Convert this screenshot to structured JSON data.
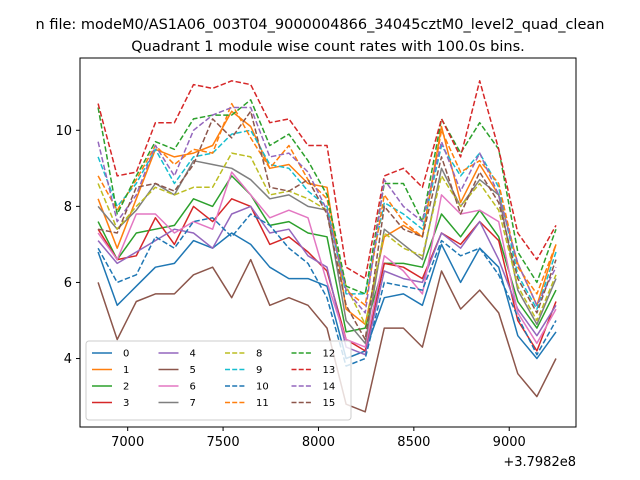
{
  "chart_data": {
    "type": "line",
    "suptitle": "n file: modeM0/AS1A06_003T04_9000004866_34045cztM0_level2_quad_clean",
    "title": "Quadrant 1 module wise count rates with 100.0s bins.",
    "xlabel": "",
    "ylabel": "",
    "x_offset_label": "+3.7982e8",
    "xlim": [
      6750,
      9350
    ],
    "ylim": [
      2.2,
      11.9
    ],
    "x_ticks": [
      7000,
      7500,
      8000,
      8500,
      9000
    ],
    "x_tick_labels": [
      "7000",
      "7500",
      "8000",
      "8500",
      "9000"
    ],
    "y_ticks": [
      4,
      6,
      8,
      10
    ],
    "y_tick_labels": [
      "4",
      "6",
      "8",
      "10"
    ],
    "grid": false,
    "legend_position": "lower-left",
    "x": [
      6845,
      6945,
      7045,
      7145,
      7245,
      7345,
      7445,
      7545,
      7645,
      7745,
      7845,
      7945,
      8045,
      8145,
      8245,
      8345,
      8445,
      8545,
      8645,
      8745,
      8845,
      8945,
      9045,
      9145,
      9245
    ],
    "series": [
      {
        "name": "0",
        "color": "#1f77b4",
        "dash": "solid",
        "values": [
          6.8,
          5.4,
          5.9,
          6.4,
          6.5,
          7.1,
          6.9,
          7.3,
          7.0,
          6.4,
          6.1,
          6.1,
          5.9,
          4.0,
          4.2,
          5.6,
          5.7,
          5.4,
          7.0,
          6.0,
          6.9,
          6.4,
          4.6,
          4.0,
          4.7
        ]
      },
      {
        "name": "1",
        "color": "#ff7f0e",
        "dash": "solid",
        "values": [
          8.2,
          6.9,
          8.2,
          9.5,
          9.3,
          9.4,
          9.6,
          10.5,
          10.1,
          9.0,
          9.1,
          8.6,
          8.5,
          5.3,
          4.9,
          7.2,
          7.5,
          7.2,
          10.1,
          8.1,
          9.1,
          8.3,
          6.5,
          5.4,
          7.0
        ]
      },
      {
        "name": "2",
        "color": "#2ca02c",
        "dash": "solid",
        "values": [
          7.6,
          6.6,
          7.3,
          7.4,
          7.5,
          8.2,
          8.0,
          8.8,
          8.3,
          7.5,
          7.6,
          7.3,
          7.2,
          4.7,
          4.8,
          6.5,
          6.5,
          6.4,
          7.8,
          7.2,
          7.9,
          7.2,
          5.5,
          4.8,
          5.8
        ]
      },
      {
        "name": "3",
        "color": "#d62728",
        "dash": "solid",
        "values": [
          7.4,
          6.6,
          6.7,
          7.7,
          7.0,
          8.0,
          7.6,
          8.2,
          8.0,
          7.0,
          7.2,
          6.8,
          6.3,
          4.5,
          4.2,
          6.5,
          6.4,
          6.1,
          7.3,
          7.0,
          7.6,
          7.1,
          5.0,
          4.2,
          5.5
        ]
      },
      {
        "name": "4",
        "color": "#9467bd",
        "dash": "solid",
        "values": [
          7.1,
          6.5,
          6.8,
          7.1,
          7.4,
          7.3,
          6.9,
          7.8,
          8.0,
          7.3,
          7.4,
          6.7,
          6.4,
          4.3,
          4.1,
          6.3,
          6.1,
          6.0,
          7.3,
          6.9,
          7.6,
          6.6,
          5.3,
          4.6,
          5.4
        ]
      },
      {
        "name": "5",
        "color": "#8c564b",
        "dash": "solid",
        "values": [
          6.0,
          4.5,
          5.5,
          5.7,
          5.7,
          6.2,
          6.4,
          5.6,
          6.6,
          5.4,
          5.6,
          5.4,
          4.8,
          2.8,
          2.6,
          4.8,
          4.8,
          4.3,
          6.3,
          5.3,
          5.8,
          5.2,
          3.6,
          3.0,
          4.0
        ]
      },
      {
        "name": "6",
        "color": "#e377c2",
        "dash": "solid",
        "values": [
          7.3,
          6.6,
          7.8,
          7.8,
          7.3,
          7.6,
          7.4,
          8.9,
          8.3,
          7.7,
          7.9,
          7.7,
          6.0,
          4.5,
          4.3,
          6.7,
          6.3,
          5.7,
          8.3,
          7.8,
          7.9,
          7.6,
          5.2,
          4.4,
          5.3
        ]
      },
      {
        "name": "7",
        "color": "#7f7f7f",
        "dash": "solid",
        "values": [
          8.0,
          7.4,
          7.9,
          8.6,
          8.3,
          9.2,
          9.1,
          9.0,
          8.7,
          8.2,
          8.3,
          8.0,
          7.9,
          5.0,
          4.4,
          7.4,
          7.0,
          6.6,
          9.0,
          8.0,
          8.7,
          8.3,
          5.8,
          4.9,
          6.1
        ]
      },
      {
        "name": "8",
        "color": "#bcbd22",
        "dash": "dash",
        "values": [
          8.6,
          7.4,
          8.0,
          8.5,
          8.3,
          8.5,
          8.5,
          9.4,
          9.3,
          8.3,
          8.4,
          8.2,
          7.9,
          5.9,
          4.9,
          7.3,
          6.9,
          6.7,
          8.8,
          8.0,
          8.6,
          7.9,
          5.9,
          5.0,
          6.2
        ]
      },
      {
        "name": "9",
        "color": "#17becf",
        "dash": "dash",
        "values": [
          9.3,
          8.0,
          8.6,
          9.5,
          8.6,
          9.3,
          9.4,
          9.9,
          10.0,
          9.1,
          9.0,
          8.4,
          8.0,
          5.7,
          5.7,
          8.1,
          7.8,
          7.4,
          9.6,
          8.8,
          9.4,
          8.5,
          6.2,
          5.3,
          6.8
        ]
      },
      {
        "name": "10",
        "color": "#1f77b4",
        "dash": "dash",
        "values": [
          6.9,
          6.0,
          6.2,
          7.2,
          6.9,
          7.6,
          7.7,
          7.2,
          7.8,
          7.5,
          6.9,
          6.5,
          5.6,
          3.8,
          4.0,
          6.0,
          5.9,
          5.8,
          7.1,
          6.7,
          6.9,
          6.2,
          5.1,
          4.1,
          5.0
        ]
      },
      {
        "name": "11",
        "color": "#ff7f0e",
        "dash": "dash",
        "values": [
          8.8,
          7.9,
          8.7,
          9.6,
          9.1,
          9.5,
          9.4,
          10.7,
          9.8,
          9.0,
          9.6,
          8.7,
          8.2,
          5.8,
          5.4,
          8.3,
          7.6,
          7.2,
          10.0,
          8.9,
          9.2,
          8.6,
          6.4,
          5.7,
          7.0
        ]
      },
      {
        "name": "12",
        "color": "#2ca02c",
        "dash": "dash",
        "values": [
          10.6,
          7.8,
          8.8,
          9.7,
          9.5,
          10.3,
          10.4,
          10.4,
          10.8,
          9.6,
          9.9,
          9.2,
          8.3,
          5.9,
          5.7,
          8.6,
          8.6,
          7.6,
          10.3,
          9.4,
          10.2,
          9.5,
          6.8,
          6.0,
          7.4
        ]
      },
      {
        "name": "13",
        "color": "#d62728",
        "dash": "dash",
        "values": [
          10.7,
          8.8,
          8.9,
          10.2,
          10.2,
          11.2,
          11.1,
          11.3,
          11.2,
          10.2,
          10.3,
          9.6,
          9.6,
          6.4,
          6.1,
          8.8,
          9.0,
          8.5,
          10.3,
          9.3,
          11.3,
          9.5,
          7.3,
          6.6,
          7.5
        ]
      },
      {
        "name": "14",
        "color": "#9467bd",
        "dash": "dash",
        "values": [
          9.7,
          7.6,
          8.3,
          9.6,
          8.8,
          10.0,
          10.4,
          10.6,
          10.6,
          9.3,
          9.4,
          8.9,
          7.9,
          5.8,
          5.2,
          8.7,
          8.0,
          7.6,
          9.7,
          8.4,
          9.4,
          8.3,
          6.5,
          5.4,
          6.4
        ]
      },
      {
        "name": "15",
        "color": "#8c564b",
        "dash": "dash",
        "values": [
          7.4,
          7.3,
          8.5,
          8.6,
          8.4,
          9.1,
          10.3,
          9.8,
          10.5,
          8.5,
          8.4,
          8.7,
          7.8,
          5.4,
          4.5,
          8.0,
          7.4,
          7.2,
          9.3,
          7.8,
          8.9,
          8.1,
          6.1,
          5.2,
          6.6
        ]
      }
    ]
  }
}
